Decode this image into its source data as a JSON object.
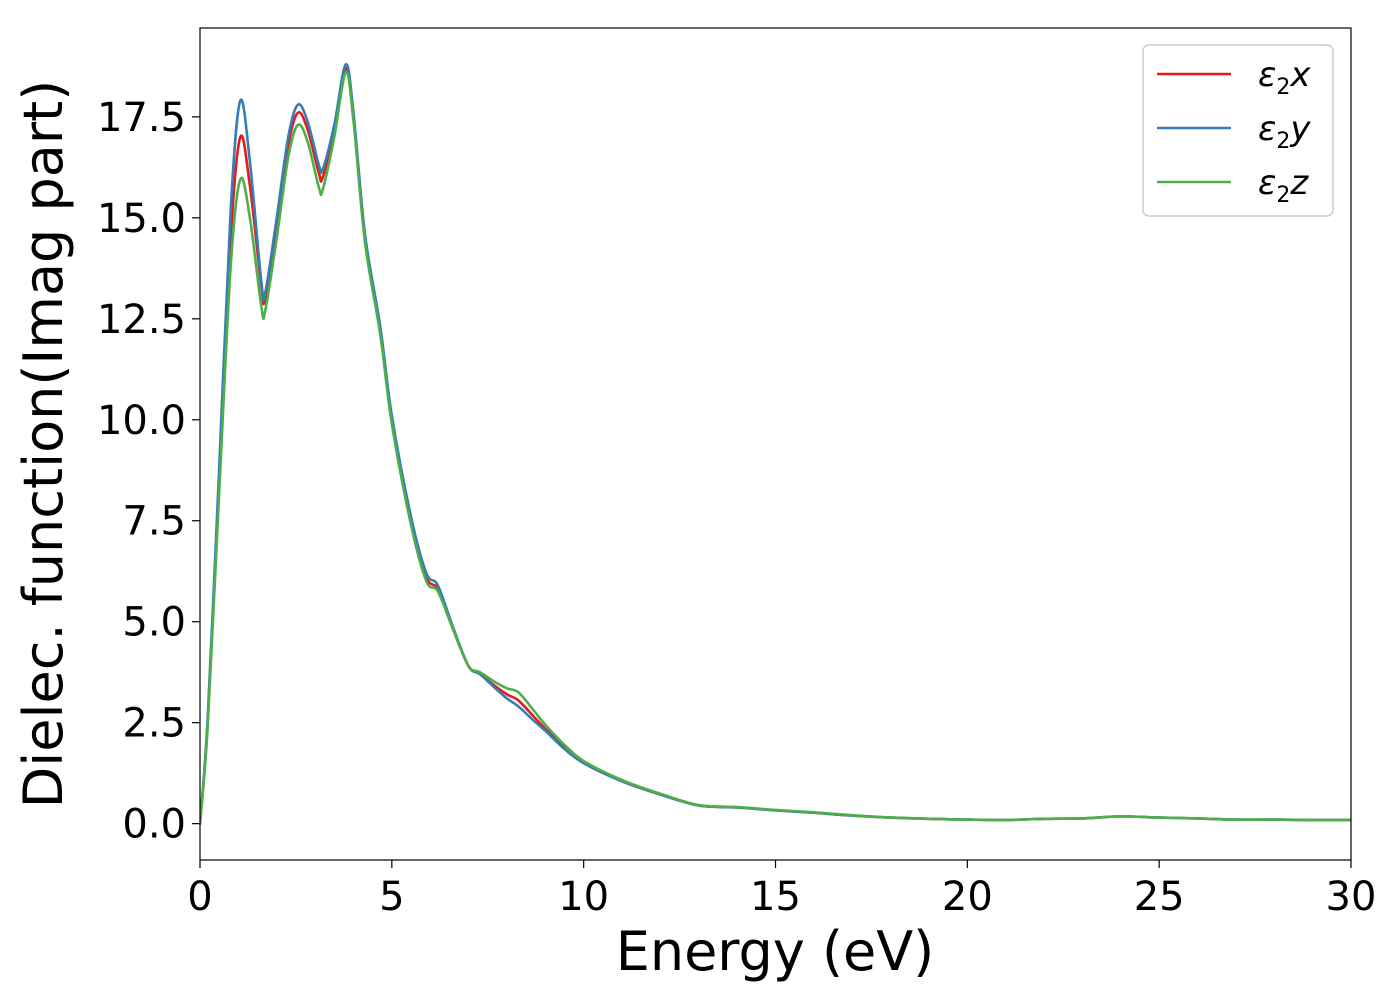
{
  "chart_data": {
    "type": "line",
    "title": "",
    "xlabel": "Energy (eV)",
    "ylabel": "Dielec. function(Imag part)",
    "xlim": [
      0,
      30
    ],
    "ylim": [
      -0.9,
      19.7
    ],
    "xticks": [
      0,
      5,
      10,
      15,
      20,
      25,
      30
    ],
    "xtick_labels": [
      "0",
      "5",
      "10",
      "15",
      "20",
      "25",
      "30"
    ],
    "yticks": [
      0.0,
      2.5,
      5.0,
      7.5,
      10.0,
      12.5,
      15.0,
      17.5
    ],
    "ytick_labels": [
      "0.0",
      "2.5",
      "5.0",
      "7.5",
      "10.0",
      "12.5",
      "15.0",
      "17.5"
    ],
    "grid": false,
    "legend_position": "top-right",
    "series": [
      {
        "name": "ε2x",
        "legend": {
          "symbol": "ε",
          "sub": "2",
          "var": "x"
        },
        "color": "#e41a1c",
        "x": [
          0,
          0.2,
          0.5,
          0.8,
          1.05,
          1.3,
          1.6,
          1.7,
          2.0,
          2.3,
          2.55,
          2.8,
          3.1,
          3.2,
          3.5,
          3.8,
          4.0,
          4.3,
          4.7,
          5.0,
          5.5,
          5.9,
          6.2,
          6.6,
          7.0,
          7.3,
          7.7,
          8.0,
          8.3,
          8.7,
          9.0,
          9.5,
          10.0,
          11.0,
          12.0,
          13.0,
          14.0,
          15.0,
          16.0,
          17.0,
          18.0,
          19.0,
          20.0,
          21.0,
          22.0,
          23.0,
          24.0,
          25.0,
          26.0,
          27.0,
          28.0,
          29.0,
          30.0
        ],
        "y": [
          0.0,
          2.5,
          8.5,
          14.5,
          17.0,
          15.8,
          13.3,
          13.0,
          14.8,
          16.8,
          17.6,
          17.2,
          16.1,
          16.0,
          17.2,
          18.7,
          17.5,
          14.5,
          12.2,
          10.0,
          7.5,
          6.1,
          5.8,
          4.8,
          3.9,
          3.7,
          3.4,
          3.2,
          3.05,
          2.65,
          2.35,
          1.9,
          1.5,
          1.05,
          0.72,
          0.45,
          0.4,
          0.33,
          0.27,
          0.2,
          0.15,
          0.12,
          0.1,
          0.09,
          0.12,
          0.13,
          0.18,
          0.15,
          0.13,
          0.1,
          0.1,
          0.09,
          0.09
        ]
      },
      {
        "name": "ε2y",
        "legend": {
          "symbol": "ε",
          "sub": "2",
          "var": "y"
        },
        "color": "#377eb8",
        "x": [
          0,
          0.2,
          0.5,
          0.8,
          1.05,
          1.3,
          1.6,
          1.7,
          2.0,
          2.3,
          2.55,
          2.8,
          3.1,
          3.2,
          3.5,
          3.8,
          4.0,
          4.3,
          4.7,
          5.0,
          5.5,
          5.9,
          6.2,
          6.6,
          7.0,
          7.3,
          7.7,
          8.0,
          8.3,
          8.7,
          9.0,
          9.5,
          10.0,
          11.0,
          12.0,
          13.0,
          14.0,
          15.0,
          16.0,
          17.0,
          18.0,
          19.0,
          20.0,
          21.0,
          22.0,
          23.0,
          24.0,
          25.0,
          26.0,
          27.0,
          28.0,
          29.0,
          30.0
        ],
        "y": [
          0.0,
          2.6,
          8.8,
          15.2,
          17.9,
          16.4,
          13.4,
          13.15,
          15.0,
          17.0,
          17.8,
          17.4,
          16.3,
          16.2,
          17.3,
          18.8,
          17.6,
          14.6,
          12.3,
          10.1,
          7.6,
          6.2,
          5.9,
          4.85,
          3.9,
          3.7,
          3.35,
          3.1,
          2.9,
          2.55,
          2.3,
          1.85,
          1.5,
          1.05,
          0.72,
          0.45,
          0.4,
          0.33,
          0.27,
          0.2,
          0.15,
          0.12,
          0.1,
          0.09,
          0.12,
          0.13,
          0.18,
          0.15,
          0.13,
          0.1,
          0.1,
          0.09,
          0.09
        ]
      },
      {
        "name": "ε2z",
        "legend": {
          "symbol": "ε",
          "sub": "2",
          "var": "z"
        },
        "color": "#4daf4a",
        "x": [
          0,
          0.2,
          0.5,
          0.8,
          1.05,
          1.3,
          1.6,
          1.7,
          2.0,
          2.3,
          2.55,
          2.8,
          3.1,
          3.2,
          3.5,
          3.8,
          4.0,
          4.3,
          4.7,
          5.0,
          5.5,
          5.9,
          6.2,
          6.6,
          7.0,
          7.3,
          7.7,
          8.0,
          8.3,
          8.7,
          9.0,
          9.5,
          10.0,
          11.0,
          12.0,
          13.0,
          14.0,
          15.0,
          16.0,
          17.0,
          18.0,
          19.0,
          20.0,
          21.0,
          22.0,
          23.0,
          24.0,
          25.0,
          26.0,
          27.0,
          28.0,
          29.0,
          30.0
        ],
        "y": [
          0.0,
          2.4,
          8.2,
          13.8,
          15.95,
          15.0,
          12.8,
          12.7,
          14.5,
          16.5,
          17.3,
          16.9,
          15.75,
          15.7,
          17.0,
          18.6,
          17.4,
          14.4,
          12.1,
          9.9,
          7.4,
          6.0,
          5.75,
          4.8,
          3.9,
          3.75,
          3.5,
          3.35,
          3.25,
          2.8,
          2.45,
          1.95,
          1.55,
          1.08,
          0.74,
          0.46,
          0.41,
          0.34,
          0.28,
          0.21,
          0.15,
          0.12,
          0.1,
          0.09,
          0.12,
          0.13,
          0.18,
          0.15,
          0.13,
          0.1,
          0.1,
          0.09,
          0.09
        ]
      }
    ]
  }
}
